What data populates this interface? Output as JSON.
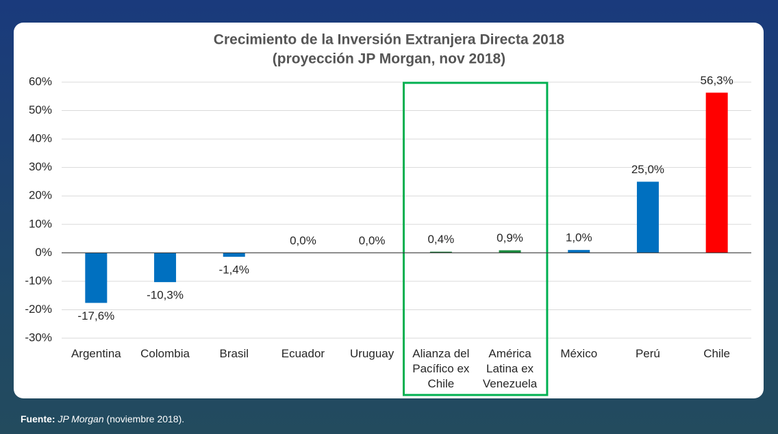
{
  "chart_data": {
    "type": "bar",
    "title": "Crecimiento de la Inversión Extranjera Directa 2018",
    "subtitle": "(proyección JP Morgan, nov 2018)",
    "categories": [
      "Argentina",
      "Colombia",
      "Brasil",
      "Ecuador",
      "Uruguay",
      "Alianza del Pacífico ex Chile",
      "América Latina ex Venezuela",
      "México",
      "Perú",
      "Chile"
    ],
    "values": [
      -17.6,
      -10.3,
      -1.4,
      0.0,
      0.0,
      0.4,
      0.9,
      1.0,
      25.0,
      56.3
    ],
    "value_labels": [
      "-17,6%",
      "-10,3%",
      "-1,4%",
      "0,0%",
      "0,0%",
      "0,4%",
      "0,9%",
      "1,0%",
      "25,0%",
      "56,3%"
    ],
    "colors": [
      "#0070c0",
      "#0070c0",
      "#0070c0",
      "#0070c0",
      "#0070c0",
      "#1a7a3a",
      "#1a8a3e",
      "#0070c0",
      "#0070c0",
      "#ff0000"
    ],
    "ylim": [
      -30,
      60
    ],
    "yticks": [
      {
        "value": -30,
        "label": "-30%"
      },
      {
        "value": -20,
        "label": "-20%"
      },
      {
        "value": -10,
        "label": "-10%"
      },
      {
        "value": 0,
        "label": "0%"
      },
      {
        "value": 10,
        "label": "10%"
      },
      {
        "value": 20,
        "label": "20%"
      },
      {
        "value": 30,
        "label": "30%"
      },
      {
        "value": 40,
        "label": "40%"
      },
      {
        "value": 50,
        "label": "50%"
      },
      {
        "value": 60,
        "label": "60%"
      }
    ],
    "grid": true
  },
  "source": {
    "label": "Fuente:",
    "name": "JP Morgan",
    "rest": "(noviembre 2018)."
  }
}
